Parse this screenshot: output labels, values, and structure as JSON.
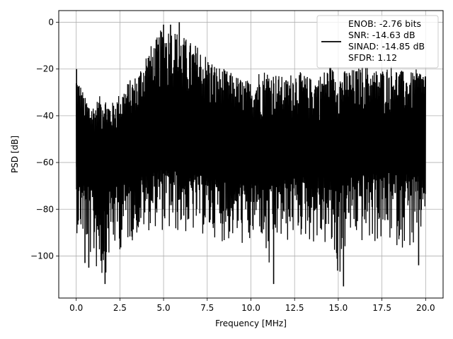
{
  "chart_data": {
    "type": "line",
    "title": "",
    "xlabel": "Frequency [MHz]",
    "ylabel": "PSD [dB]",
    "xlim": [
      -1.0,
      21.0
    ],
    "ylim": [
      -118,
      5
    ],
    "xticks": [
      0.0,
      2.5,
      5.0,
      7.5,
      10.0,
      12.5,
      15.0,
      17.5,
      20.0
    ],
    "xtick_labels": [
      "0.0",
      "2.5",
      "5.0",
      "7.5",
      "10.0",
      "12.5",
      "15.0",
      "17.5",
      "20.0"
    ],
    "yticks": [
      0,
      -20,
      -40,
      -60,
      -80,
      -100
    ],
    "ytick_labels": [
      "0",
      "−20",
      "−40",
      "−60",
      "−80",
      "−100"
    ],
    "grid": true,
    "legend_position": "top-right",
    "legend": {
      "entries": [
        "ENOB: -2.76 bits",
        "SNR: -14.63 dB",
        "SINAD: -14.85 dB",
        "SFDR: 1.12"
      ],
      "line_color": "#000000"
    },
    "series": [
      {
        "color": "#000000",
        "x": [
          0.0,
          0.5,
          1.0,
          1.5,
          2.0,
          2.5,
          3.0,
          3.5,
          4.0,
          4.5,
          5.0,
          5.5,
          6.0,
          6.5,
          7.0,
          7.5,
          8.0,
          8.5,
          9.0,
          9.5,
          10.0,
          10.5,
          11.0,
          11.5,
          12.0,
          12.5,
          13.0,
          13.5,
          14.0,
          14.5,
          15.0,
          15.5,
          16.0,
          16.5,
          17.0,
          17.5,
          18.0,
          18.5,
          19.0,
          19.5,
          20.0
        ],
        "upper": [
          -20,
          -32,
          -35,
          -30,
          -35,
          -30,
          -25,
          -22,
          -12,
          -8,
          -1,
          -2,
          -5,
          -8,
          -10,
          -14,
          -18,
          -20,
          -22,
          -24,
          -25,
          -20,
          -20,
          -22,
          -24,
          -20,
          -22,
          -24,
          -22,
          -18,
          -22,
          -20,
          -20,
          -18,
          -20,
          -20,
          -18,
          -20,
          -22,
          -20,
          -20
        ],
        "lower": [
          -90,
          -95,
          -105,
          -112,
          -100,
          -98,
          -95,
          -92,
          -90,
          -88,
          -90,
          -92,
          -90,
          -92,
          -90,
          -93,
          -92,
          -95,
          -94,
          -96,
          -98,
          -90,
          -112,
          -95,
          -96,
          -92,
          -93,
          -95,
          -96,
          -98,
          -113,
          -95,
          -94,
          -96,
          -95,
          -96,
          -95,
          -97,
          -96,
          -104,
          -80
        ],
        "mean": [
          -62,
          -60,
          -61,
          -61,
          -60,
          -60,
          -59,
          -58,
          -57,
          -55,
          -54,
          -54,
          -55,
          -56,
          -57,
          -58,
          -58,
          -59,
          -59,
          -60,
          -60,
          -58,
          -58,
          -58,
          -58,
          -57,
          -57,
          -57,
          -56,
          -56,
          -56,
          -55,
          -55,
          -55,
          -55,
          -55,
          -54,
          -54,
          -54,
          -54,
          -55
        ],
        "spikes": [
          {
            "x": 0.02,
            "y": -20
          },
          {
            "x": 1.65,
            "y": -112
          },
          {
            "x": 0.5,
            "y": -103
          },
          {
            "x": 0.72,
            "y": -105
          },
          {
            "x": 5.0,
            "y": -1
          },
          {
            "x": 5.4,
            "y": -1
          },
          {
            "x": 5.9,
            "y": 0
          },
          {
            "x": 11.3,
            "y": -112
          },
          {
            "x": 15.3,
            "y": -113
          },
          {
            "x": 19.6,
            "y": -104
          }
        ]
      }
    ]
  }
}
